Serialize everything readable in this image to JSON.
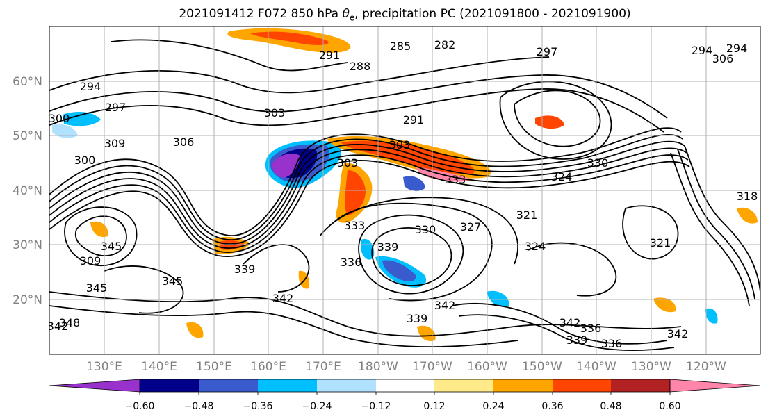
{
  "title_main": "2021091412 F072 850 hPa ",
  "title_sym": "θ",
  "title_sub": "e",
  "title_rest": ", precipitation PC (2021091800 - 2021091900)",
  "lon_labels": [
    "130°E",
    "140°E",
    "150°E",
    "160°E",
    "170°E",
    "180°W",
    "170°W",
    "160°W",
    "150°W",
    "140°W",
    "130°W",
    "120°W"
  ],
  "lat_labels": [
    "60°N",
    "50°N",
    "40°N",
    "30°N",
    "20°N"
  ],
  "colorbar": {
    "colors": [
      "#9932CC",
      "#00008B",
      "#3A5BCD",
      "#00BFFF",
      "#B0E2FF",
      "#FFFFFF",
      "#FFEA8A",
      "#FFA500",
      "#FF4500",
      "#B22222",
      "#FF85AA"
    ],
    "tick_labels": [
      "−0.60",
      "−0.48",
      "−0.36",
      "−0.24",
      "−0.12",
      "0.12",
      "0.24",
      "0.36",
      "0.48",
      "0.60"
    ]
  },
  "contour_labels": [
    "285",
    "282",
    "291",
    "288",
    "297",
    "294",
    "294",
    "297",
    "300",
    "303",
    "306",
    "309",
    "300",
    "303",
    "291",
    "294",
    "306",
    "303",
    "333",
    "324",
    "318",
    "321",
    "327",
    "330",
    "339",
    "336",
    "333",
    "330",
    "324",
    "321",
    "309",
    "345",
    "345",
    "342",
    "345",
    "339",
    "342",
    "336",
    "342",
    "342",
    "336",
    "339",
    "348",
    "339",
    "342"
  ]
}
